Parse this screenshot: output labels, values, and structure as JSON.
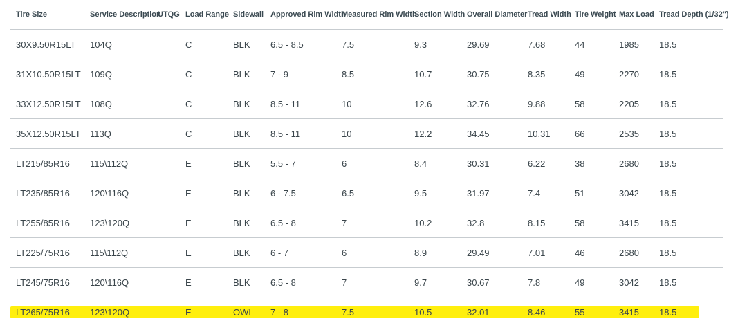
{
  "table": {
    "headers": [
      "Tire Size",
      "Service Description",
      "UTQG",
      "Load Range",
      "Sidewall",
      "Approved Rim Width",
      "Measured Rim Width",
      "Section Width",
      "Overall Diameter",
      "Tread Width",
      "Tire Weight",
      "Max Load",
      "Tread Depth (1/32\")"
    ],
    "rows": [
      [
        "30X9.50R15LT",
        "104Q",
        "",
        "C",
        "BLK",
        "6.5 - 8.5",
        "7.5",
        "9.3",
        "29.69",
        "7.68",
        "44",
        "1985",
        "18.5"
      ],
      [
        "31X10.50R15LT",
        "109Q",
        "",
        "C",
        "BLK",
        "7 - 9",
        "8.5",
        "10.7",
        "30.75",
        "8.35",
        "49",
        "2270",
        "18.5"
      ],
      [
        "33X12.50R15LT",
        "108Q",
        "",
        "C",
        "BLK",
        "8.5 - 11",
        "10",
        "12.6",
        "32.76",
        "9.88",
        "58",
        "2205",
        "18.5"
      ],
      [
        "35X12.50R15LT",
        "113Q",
        "",
        "C",
        "BLK",
        "8.5 - 11",
        "10",
        "12.2",
        "34.45",
        "10.31",
        "66",
        "2535",
        "18.5"
      ],
      [
        "LT215/85R16",
        "115\\112Q",
        "",
        "E",
        "BLK",
        "5.5 - 7",
        "6",
        "8.4",
        "30.31",
        "6.22",
        "38",
        "2680",
        "18.5"
      ],
      [
        "LT235/85R16",
        "120\\116Q",
        "",
        "E",
        "BLK",
        "6 - 7.5",
        "6.5",
        "9.5",
        "31.97",
        "7.4",
        "51",
        "3042",
        "18.5"
      ],
      [
        "LT255/85R16",
        "123\\120Q",
        "",
        "E",
        "BLK",
        "6.5 - 8",
        "7",
        "10.2",
        "32.8",
        "8.15",
        "58",
        "3415",
        "18.5"
      ],
      [
        "LT225/75R16",
        "115\\112Q",
        "",
        "E",
        "BLK",
        "6 - 7",
        "6",
        "8.9",
        "29.49",
        "7.01",
        "46",
        "2680",
        "18.5"
      ],
      [
        "LT245/75R16",
        "120\\116Q",
        "",
        "E",
        "BLK",
        "6.5 - 8",
        "7",
        "9.7",
        "30.67",
        "7.8",
        "49",
        "3042",
        "18.5"
      ],
      [
        "LT265/75R16",
        "123\\120Q",
        "",
        "E",
        "OWL",
        "7 - 8",
        "7.5",
        "10.5",
        "32.01",
        "8.46",
        "55",
        "3415",
        "18.5"
      ]
    ],
    "highlighted_row_index": 9,
    "highlight_color": "#ffee00",
    "rule_color": "#c7ccd0",
    "text_color": "#3a454b"
  }
}
